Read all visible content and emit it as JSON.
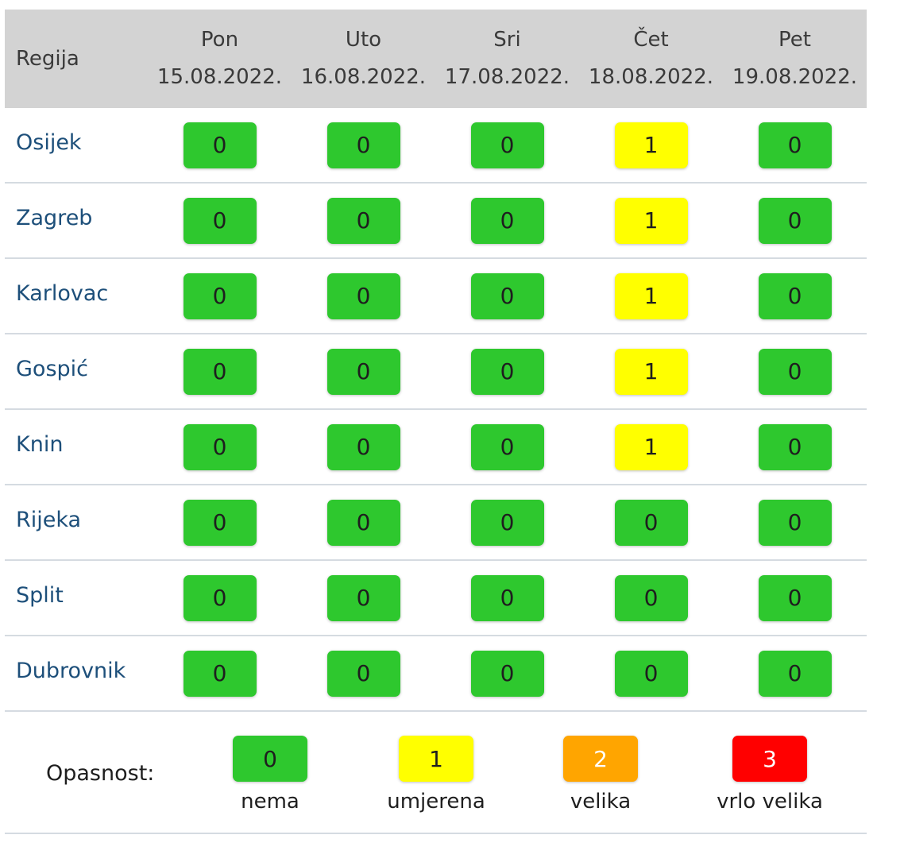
{
  "header": {
    "region_label": "Regija",
    "days": [
      {
        "day": "Pon",
        "date": "15.08.2022."
      },
      {
        "day": "Uto",
        "date": "16.08.2022."
      },
      {
        "day": "Sri",
        "date": "17.08.2022."
      },
      {
        "day": "Čet",
        "date": "18.08.2022."
      },
      {
        "day": "Pet",
        "date": "19.08.2022."
      }
    ]
  },
  "rows": [
    {
      "region": "Osijek",
      "values": [
        "0",
        "0",
        "0",
        "1",
        "0"
      ]
    },
    {
      "region": "Zagreb",
      "values": [
        "0",
        "0",
        "0",
        "1",
        "0"
      ]
    },
    {
      "region": "Karlovac",
      "values": [
        "0",
        "0",
        "0",
        "1",
        "0"
      ]
    },
    {
      "region": "Gospić",
      "values": [
        "0",
        "0",
        "0",
        "1",
        "0"
      ]
    },
    {
      "region": "Knin",
      "values": [
        "0",
        "0",
        "0",
        "1",
        "0"
      ]
    },
    {
      "region": "Rijeka",
      "values": [
        "0",
        "0",
        "0",
        "0",
        "0"
      ]
    },
    {
      "region": "Split",
      "values": [
        "0",
        "0",
        "0",
        "0",
        "0"
      ]
    },
    {
      "region": "Dubrovnik",
      "values": [
        "0",
        "0",
        "0",
        "0",
        "0"
      ]
    }
  ],
  "legend": {
    "title": "Opasnost:",
    "items": [
      {
        "value": "0",
        "label": "nema"
      },
      {
        "value": "1",
        "label": "umjerena"
      },
      {
        "value": "2",
        "label": "velika"
      },
      {
        "value": "3",
        "label": "vrlo velika"
      }
    ]
  },
  "colors": {
    "level_0": "#2ec82e",
    "level_1": "#ffff00",
    "level_2": "#ffa500",
    "level_3": "#ff0000",
    "header_bg": "#d3d3d3",
    "region_text": "#1d4f7a"
  }
}
